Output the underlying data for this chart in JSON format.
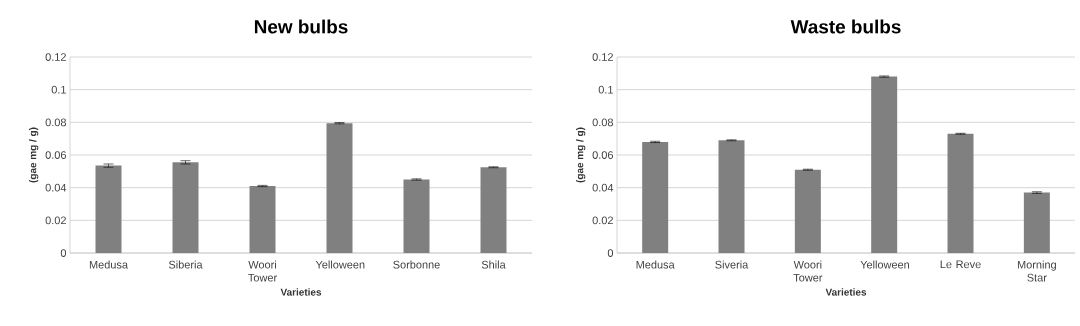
{
  "chart_data": [
    {
      "type": "bar",
      "title": "New bulbs",
      "xlabel": "Varieties",
      "ylabel": "(gae mg / g)",
      "categories": [
        "Medusa",
        "Siberia",
        "Woori Tower",
        "Yelloween",
        "Sorbonne",
        "Shila"
      ],
      "values": [
        0.0535,
        0.0555,
        0.041,
        0.0795,
        0.045,
        0.0525
      ],
      "errors": [
        0.001,
        0.001,
        0.0004,
        0.0004,
        0.0004,
        0.0003
      ],
      "color": "#808080",
      "ylim": [
        0,
        0.12
      ],
      "yticks": [
        0,
        0.02,
        0.04,
        0.06,
        0.08,
        0.1,
        0.12
      ],
      "grid": "y"
    },
    {
      "type": "bar",
      "title": "Waste bulbs",
      "xlabel": "Varieties",
      "ylabel": "(gae mg / g)",
      "categories": [
        "Medusa",
        "Siveria",
        "Woori Tower",
        "Yelloween",
        "Le Reve",
        "Morning Star"
      ],
      "values": [
        0.068,
        0.069,
        0.051,
        0.108,
        0.073,
        0.037
      ],
      "errors": [
        0.0004,
        0.0003,
        0.0003,
        0.0004,
        0.0003,
        0.0005
      ],
      "color": "#808080",
      "ylim": [
        0,
        0.12
      ],
      "yticks": [
        0,
        0.02,
        0.04,
        0.06,
        0.08,
        0.1,
        0.12
      ],
      "grid": "y"
    }
  ]
}
